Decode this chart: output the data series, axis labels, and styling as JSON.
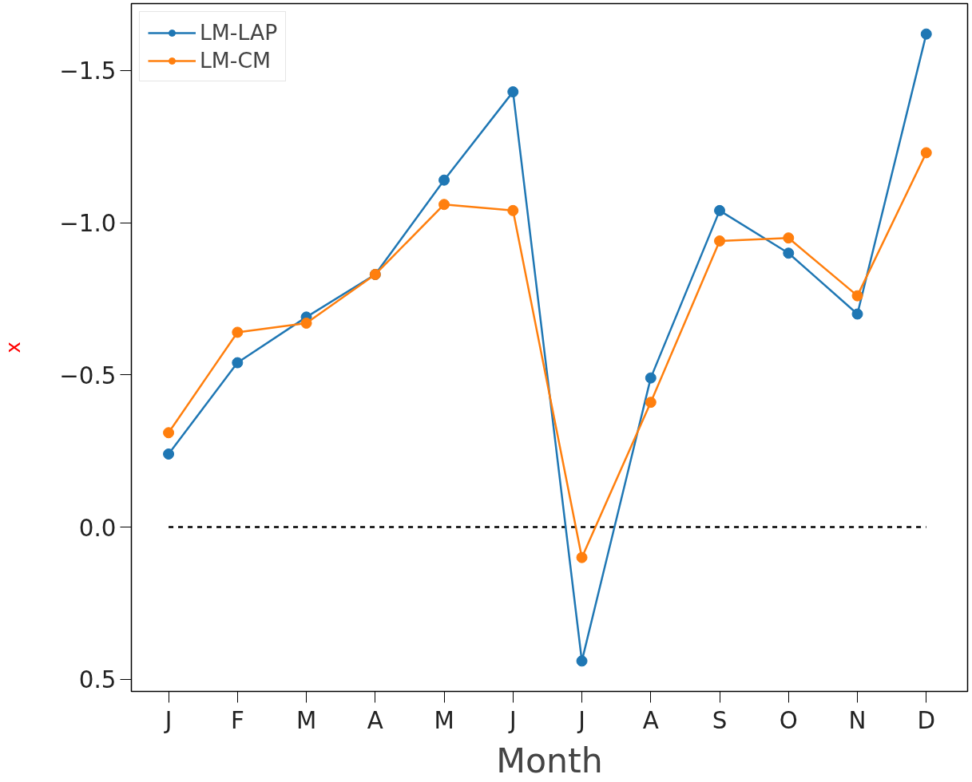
{
  "chart_data": {
    "type": "line",
    "xlabel": "Month",
    "ylabel": "x",
    "categories": [
      "J",
      "F",
      "M",
      "A",
      "M",
      "J",
      "J",
      "A",
      "S",
      "O",
      "N",
      "D"
    ],
    "series": [
      {
        "name": "LM-LAP",
        "color": "#1f77b4",
        "values": [
          -0.24,
          -0.54,
          -0.69,
          -0.83,
          -1.14,
          -1.43,
          0.44,
          -0.49,
          -1.04,
          -0.9,
          -0.7,
          -1.62
        ]
      },
      {
        "name": "LM-CM",
        "color": "#ff7f0e",
        "values": [
          -0.31,
          -0.64,
          -0.67,
          -0.83,
          -1.06,
          -1.04,
          0.1,
          -0.41,
          -0.94,
          -0.95,
          -0.76,
          -1.23
        ]
      }
    ],
    "ylim": [
      0.54,
      -1.72
    ],
    "yticks": [
      {
        "value": -1.5,
        "label": "−1.5"
      },
      {
        "value": -1.0,
        "label": "−1.0"
      },
      {
        "value": -0.5,
        "label": "−0.5"
      },
      {
        "value": 0,
        "label": "0.0"
      },
      0.5
    ],
    "ref_lines": [
      {
        "axis": "y",
        "value": 0,
        "color": "#000000",
        "line_style": "dashed"
      }
    ],
    "grid": false,
    "legend": "top left",
    "marker": "circle",
    "line_style": "solid"
  }
}
